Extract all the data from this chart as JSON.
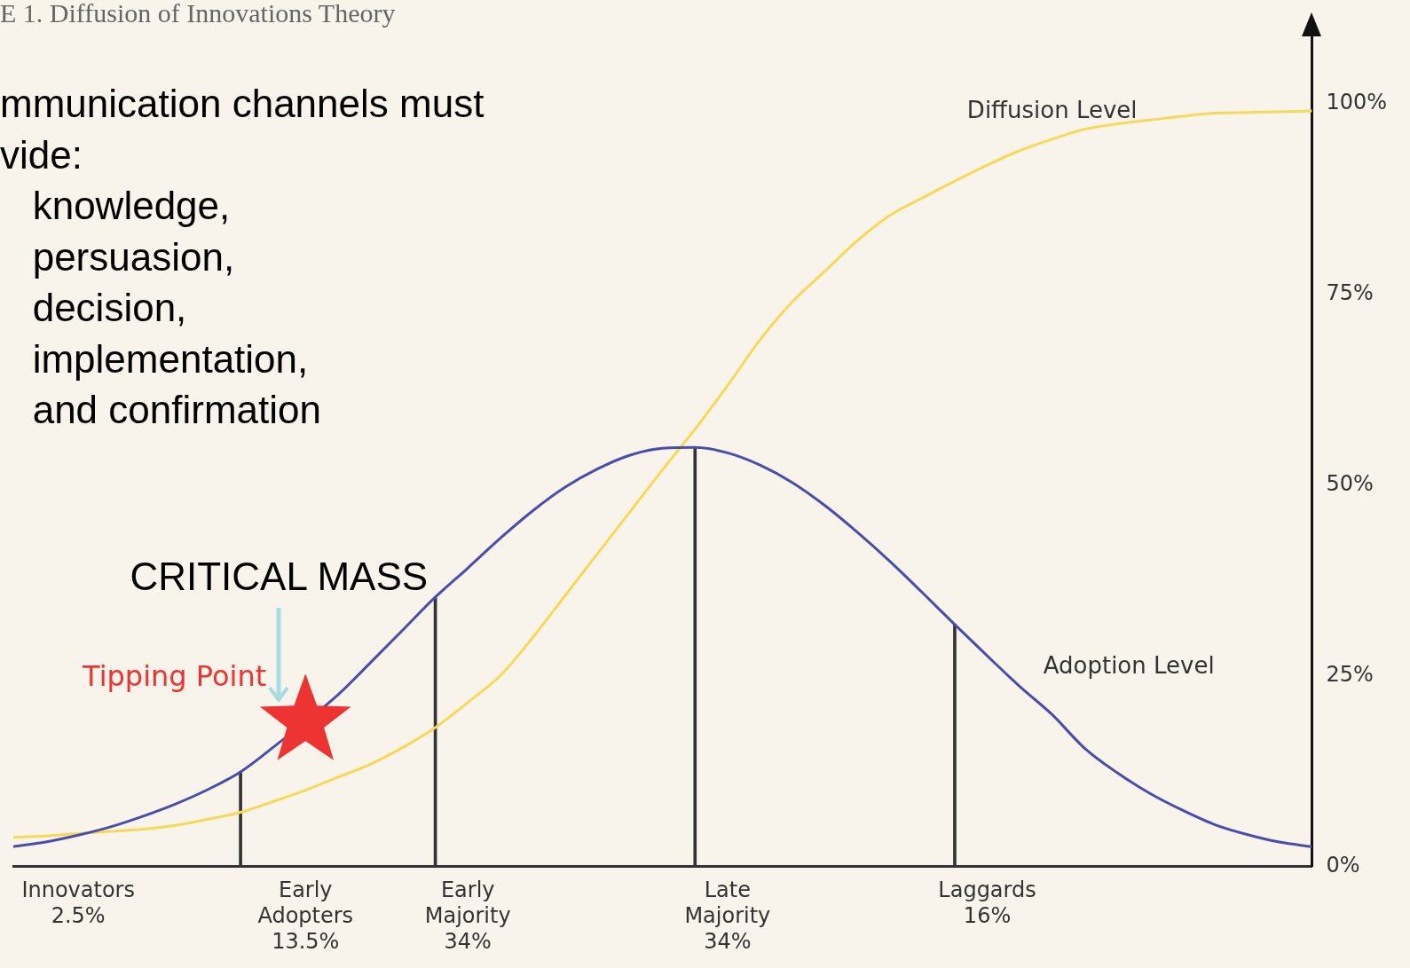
{
  "chart_data": {
    "type": "line",
    "title": "E 1. Diffusion of Innovations Theory",
    "annotations": [
      "mmunication channels must\nvide:\n   knowledge,\n   persuasion,\n   decision,\n   implementation,\n   and confirmation",
      "CRITICAL MASS",
      "Tipping Point"
    ],
    "categories": [
      null,
      null,
      "Innovators\n2.5%",
      null,
      null,
      null,
      null,
      null,
      null,
      "Early\nAdopters\n13.5%",
      null,
      null,
      null,
      null,
      "Early\nMajority\n34%",
      null,
      null,
      null,
      null,
      null,
      null,
      null,
      "Late\nMajority\n34%",
      null,
      null,
      null,
      null,
      null,
      null,
      null,
      "Laggards\n16%",
      null,
      null,
      null,
      null,
      null,
      null,
      null,
      null,
      null,
      null
    ],
    "ylim": [
      0,
      110
    ],
    "yticks": [
      {
        "value": 0,
        "label": "0%"
      },
      {
        "value": 25,
        "label": "25%"
      },
      {
        "value": 50,
        "label": "50%"
      },
      {
        "value": 75,
        "label": "75%"
      },
      {
        "value": 100,
        "label": "100%"
      }
    ],
    "series": [
      {
        "name": "Adoption Level",
        "color": "#4a4ea8",
        "values": [
          2.6,
          3.2,
          4.1,
          5.2,
          6.6,
          8.2,
          10.1,
          12.4,
          15.6,
          null,
          22.5,
          26.7,
          31,
          35.3,
          39.1,
          43,
          46.6,
          49.7,
          52.1,
          53.9,
          54.8,
          54.9,
          54.2,
          52.6,
          50.3,
          47.3,
          43.8,
          40,
          35.9,
          31.7,
          27.6,
          23.6,
          19.9,
          15.5,
          12.3,
          9.6,
          7.4,
          5.5,
          4.2,
          3.2,
          2.6
        ]
      },
      {
        "name": "Diffusion Level",
        "color": "#f7d95a",
        "values": [
          3.8,
          4,
          4.3,
          4.6,
          4.9,
          5.4,
          6.2,
          7.1,
          8.5,
          10,
          11.7,
          13.4,
          15.6,
          18.2,
          21.5,
          25,
          30,
          35.5,
          41,
          46.5,
          52,
          57.3,
          63,
          69,
          74,
          78,
          82,
          85.3,
          87.6,
          89.8,
          91.9,
          93.8,
          95.3,
          96.6,
          97.3,
          97.8,
          98.3,
          98.7,
          98.8,
          98.9,
          99
        ]
      },
      {
        "type": "bar",
        "color": "#333333",
        "values": [
          null,
          null,
          null,
          null,
          null,
          null,
          null,
          12.4,
          null,
          null,
          null,
          null,
          null,
          35.3,
          null,
          null,
          null,
          null,
          null,
          null,
          null,
          54.9,
          null,
          null,
          null,
          null,
          null,
          null,
          null,
          31.7,
          null,
          null,
          null,
          null,
          null,
          null,
          null,
          null,
          null,
          null,
          null
        ]
      },
      {
        "type": "scatter",
        "marker": "star",
        "color": "#ee3333",
        "values": [
          null,
          null,
          null,
          null,
          null,
          null,
          null,
          null,
          null,
          19,
          null,
          null,
          null,
          null,
          null,
          null,
          null,
          null,
          null,
          null,
          null,
          null,
          null,
          null,
          null,
          null,
          null,
          null,
          null,
          null,
          null,
          null,
          null,
          null,
          null,
          null,
          null,
          null,
          null,
          null,
          null
        ]
      }
    ],
    "marker": "none",
    "grid": false,
    "legend": false
  }
}
